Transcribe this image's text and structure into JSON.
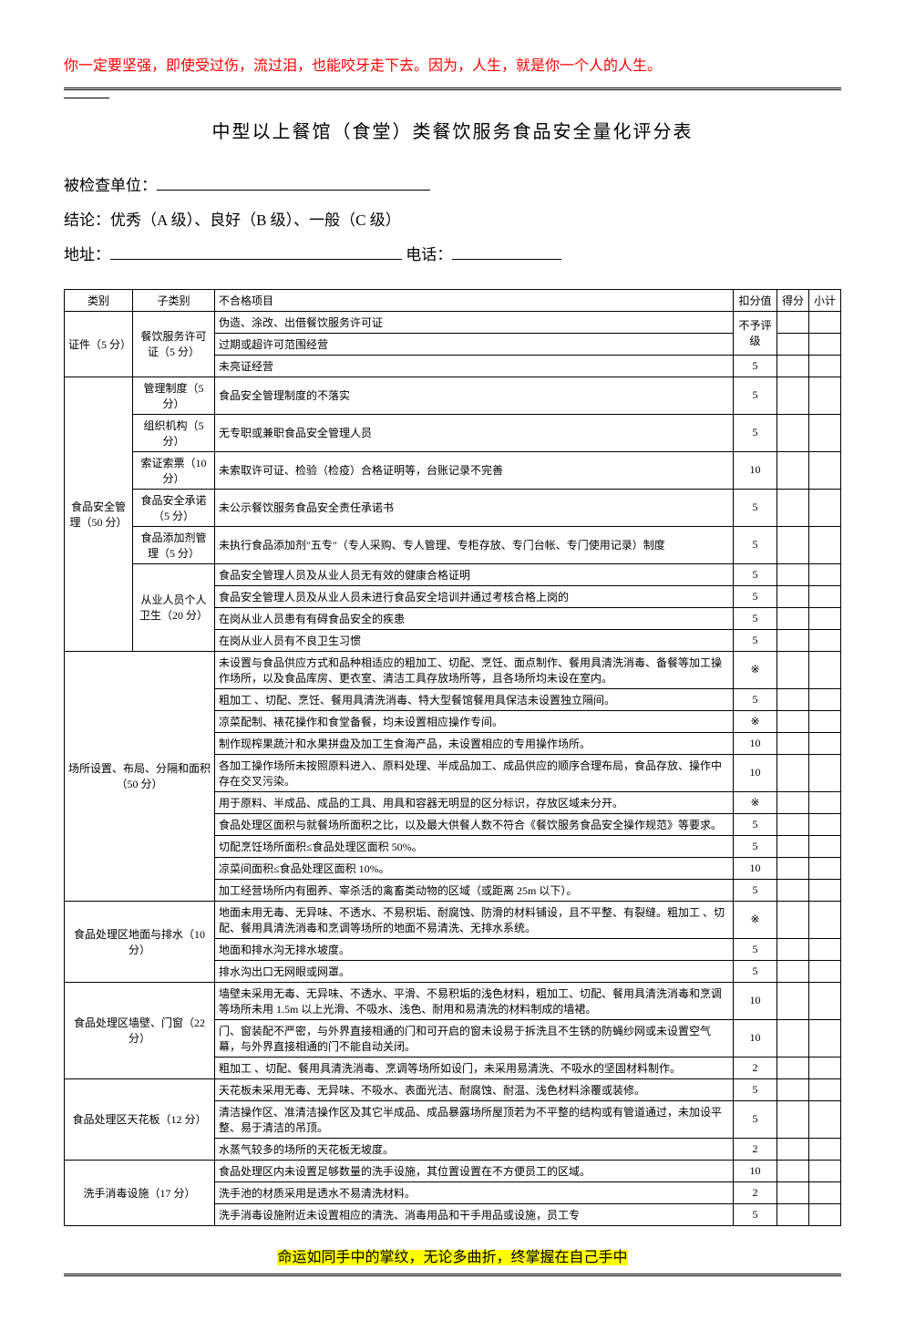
{
  "header_quote": "你一定要坚强，即使受过伤，流过泪，也能咬牙走下去。因为，人生，就是你一个人的人生。",
  "title": "中型以上餐馆（食堂）类餐饮服务食品安全量化评分表",
  "info": {
    "unit_label": "被检查单位：",
    "conclusion_label": "结论：优秀（A 级）、良好（B 级）、一般（C 级）",
    "address_label": "地址：",
    "phone_label": "电话："
  },
  "headers": {
    "category": "类别",
    "subcategory": "子类别",
    "item": "不合格项目",
    "penalty": "扣分值",
    "score": "得分",
    "subtotal": "小计"
  },
  "cat1": {
    "name": "证件（5 分）",
    "sub1": "餐饮服务许可证（5 分）",
    "r1": {
      "item": "伪造、涂改、出借餐饮服务许可证",
      "penalty": "不予评级"
    },
    "r2": {
      "item": "过期或超许可范围经营",
      "penalty": ""
    },
    "r3": {
      "item": "未亮证经营",
      "penalty": "5"
    }
  },
  "cat2": {
    "name": "食品安全管理（50 分）",
    "sub1": {
      "name": "管理制度（5 分）",
      "item": "食品安全管理制度的不落实",
      "penalty": "5"
    },
    "sub2": {
      "name": "组织机构（5 分）",
      "item": "无专职或兼职食品安全管理人员",
      "penalty": "5"
    },
    "sub3": {
      "name": "索证索票（10 分）",
      "item": "未索取许可证、检验（检疫）合格证明等，台账记录不完善",
      "penalty": "10"
    },
    "sub4": {
      "name": "食品安全承诺（5 分）",
      "item": "未公示餐饮服务食品安全责任承诺书",
      "penalty": "5"
    },
    "sub5": {
      "name": "食品添加剂管理（5 分）",
      "item": "未执行食品添加剂\"五专\"（专人采购、专人管理、专柜存放、专门台帐、专门使用记录）制度",
      "penalty": "5"
    },
    "sub6": {
      "name": "从业人员个人卫生（20 分）",
      "r1": {
        "item": "食品安全管理人员及从业人员无有效的健康合格证明",
        "penalty": "5"
      },
      "r2": {
        "item": "食品安全管理人员及从业人员未进行食品安全培训并通过考核合格上岗的",
        "penalty": "5"
      },
      "r3": {
        "item": "在岗从业人员患有有碍食品安全的疾患",
        "penalty": "5"
      },
      "r4": {
        "item": "在岗从业人员有不良卫生习惯",
        "penalty": "5"
      }
    }
  },
  "cat3": {
    "name": "场所设置、布局、分隔和面积（50 分）",
    "r1": {
      "item": "未设置与食品供应方式和品种相适应的粗加工、切配、烹饪、面点制作、餐用具清洗消毒、备餐等加工操作场所，以及食品库房、更衣室、清洁工具存放场所等，且各场所均未设在室内。",
      "penalty": "※"
    },
    "r2": {
      "item": "粗加工 、切配、烹饪、餐用具清洗消毒、特大型餐馆餐用具保洁未设置独立隔间。",
      "penalty": "5"
    },
    "r3": {
      "item": "凉菜配制、裱花操作和食堂备餐，均未设置相应操作专间。",
      "penalty": "※"
    },
    "r4": {
      "item": "制作现榨果蔬汁和水果拼盘及加工生食海产品，未设置相应的专用操作场所。",
      "penalty": "10"
    },
    "r5": {
      "item": "各加工操作场所未按照原料进入、原料处理、半成品加工、成品供应的顺序合理布局，食品存放、操作中存在交叉污染。",
      "penalty": "10"
    },
    "r6": {
      "item": "用于原料、半成品、成品的工具、用具和容器无明显的区分标识，存放区域未分开。",
      "penalty": "※"
    },
    "r7": {
      "item": "食品处理区面积与就餐场所面积之比，以及最大供餐人数不符合《餐饮服务食品安全操作规范》等要求。",
      "penalty": "5"
    },
    "r8": {
      "item": "切配烹饪场所面积≤食品处理区面积 50%。",
      "penalty": "5"
    },
    "r9": {
      "item": "凉菜间面积≤食品处理区面积 10%。",
      "penalty": "10"
    },
    "r10": {
      "item": "加工经营场所内有圈养、宰杀活的禽畜类动物的区域（或距离 25m 以下）。",
      "penalty": "5"
    }
  },
  "cat4": {
    "name": "食品处理区地面与排水（10 分）",
    "r1": {
      "item": "地面未用无毒、无异味、不透水、不易积垢、耐腐蚀、防滑的材料铺设，且不平整、有裂缝。粗加工 、切配、餐用具清洗消毒和烹调等场所的地面不易清洗、无排水系统。",
      "penalty": "※"
    },
    "r2": {
      "item": "地面和排水沟无排水坡度。",
      "penalty": "5"
    },
    "r3": {
      "item": "排水沟出口无网眼或网罩。",
      "penalty": "5"
    }
  },
  "cat5": {
    "name": "食品处理区墙壁、门窗（22 分）",
    "r1": {
      "item": "墙壁未采用无毒、无异味、不透水、平滑、不易积垢的浅色材料，粗加工、切配、餐用具清洗消毒和烹调等场所未用 1.5m 以上光滑、不吸水、浅色、耐用和易清洗的材料制成的墙裙。",
      "penalty": "10"
    },
    "r2": {
      "item": "门、窗装配不严密，与外界直接相通的门和可开启的窗未设易于拆洗且不生锈的防蝇纱网或未设置空气幕，与外界直接相通的门不能自动关闭。",
      "penalty": "10"
    },
    "r3": {
      "item": "粗加工 、切配、餐用具清洗消毒、烹调等场所如设门，未采用易清洗、不吸水的坚固材料制作。",
      "penalty": "2"
    }
  },
  "cat6": {
    "name": "食品处理区天花板（12 分）",
    "r1": {
      "item": "天花板未采用无毒、无异味、不吸水、表面光洁、耐腐蚀、耐温、浅色材料涂覆或装修。",
      "penalty": "5"
    },
    "r2": {
      "item": "清洁操作区、准清洁操作区及其它半成品、成品暴露场所屋顶若为不平整的结构或有管道通过，未加设平整、易于清洁的吊顶。",
      "penalty": "5"
    },
    "r3": {
      "item": "水蒸气较多的场所的天花板无坡度。",
      "penalty": "2"
    }
  },
  "cat7": {
    "name": "洗手消毒设施（17 分）",
    "r1": {
      "item": "食品处理区内未设置足够数量的洗手设施，其位置设置在不方便员工的区域。",
      "penalty": "10"
    },
    "r2": {
      "item": "洗手池的材质采用是透水不易清洗材料。",
      "penalty": "2"
    },
    "r3": {
      "item": "洗手消毒设施附近未设置相应的清洗、消毒用品和干手用品或设施，员工专",
      "penalty": "5"
    }
  },
  "footer_quote": "命运如同手中的掌纹，无论多曲折，终掌握在自己手中"
}
